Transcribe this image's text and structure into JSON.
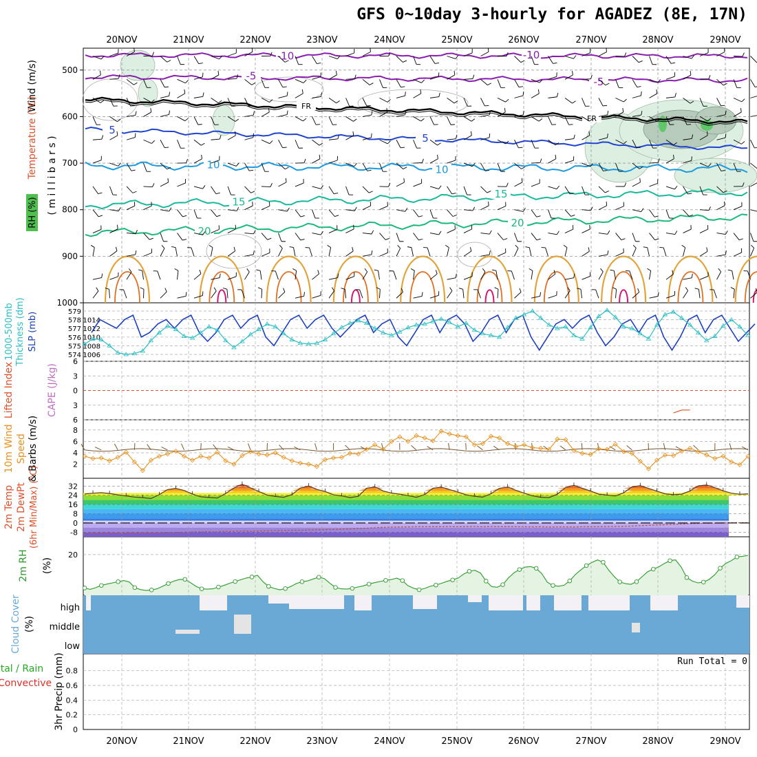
{
  "title": "GFS 0~10day 3-hourly for AGADEZ (8E, 17N)",
  "colors": {
    "wind": "#000000",
    "temp_label": "#e0502a",
    "rh_label": "#22aa22",
    "slp": "#1b3fbf",
    "thickness": "#2bbfc4",
    "lifted": "#e0502a",
    "cape": "#c070c0",
    "wind10_speed": "#e8901a",
    "wind10_barb": "#7a5530",
    "rh2m": "#2a9a2a",
    "cloud": "#6aa8d6",
    "cloud_gap": "#f3f0f6",
    "precip_total": "#22aa22",
    "precip_conv": "#e0302a"
  },
  "chart_data": [
    {
      "id": "upper-air",
      "type": "contour",
      "xlabels": [
        "20NOV",
        "21NOV",
        "22NOV",
        "23NOV",
        "24NOV",
        "25NOV",
        "26NOV",
        "27NOV",
        "28NOV",
        "29NOV"
      ],
      "yticks": [
        500,
        600,
        700,
        800,
        900,
        1000
      ],
      "ylabel_left": [
        "Wind (m/s)",
        "Temperature (°C)",
        "RH (%)"
      ],
      "ylabel_right": "(millibars)",
      "isotherms": [
        {
          "value": -10,
          "color": "#8a1db0",
          "label": "-10",
          "pressure": [
            468,
            470
          ]
        },
        {
          "value": -5,
          "color": "#8a1db0",
          "label": "-5",
          "pressure": [
            515,
            522
          ]
        },
        {
          "value": 0,
          "color": "#000000",
          "label": "FR",
          "pressure": [
            563,
            612
          ]
        },
        {
          "value": 5,
          "color": "#2042d0",
          "label": "5",
          "pressure": [
            628,
            668
          ]
        },
        {
          "value": 10,
          "color": "#1a9ae0",
          "label": "10",
          "pressure": [
            705,
            712
          ]
        },
        {
          "value": 15,
          "color": "#1ab89a",
          "label": "15",
          "pressure": [
            790,
            762
          ]
        },
        {
          "value": 20,
          "color": "#1ab87a",
          "label": "20",
          "pressure": [
            850,
            815
          ]
        }
      ],
      "contour_labels": [
        "-10",
        "-5",
        "FR",
        "5",
        "10",
        "15",
        "20",
        "10",
        "5",
        "FR",
        "5",
        "10",
        "15",
        "20",
        "10",
        "-10"
      ]
    },
    {
      "id": "slp-thickness",
      "type": "line",
      "ylabel_left": [
        "1000-500mb",
        "Thickness (dm)"
      ],
      "ylabel_right": "SLP (mb)",
      "thickness_ticks": [
        574,
        575,
        576,
        577,
        578,
        579
      ],
      "slp_ticks": [
        1006,
        1008,
        1010,
        1012,
        1014
      ],
      "series": [
        {
          "name": "SLP (mb)",
          "values": [
            1011,
            1014,
            1013,
            1012,
            1014,
            1015,
            1010,
            1011,
            1013,
            1014,
            1012,
            1014,
            1015,
            1011,
            1009,
            1011,
            1014,
            1015,
            1012,
            1014,
            1015,
            1010,
            1008,
            1011,
            1014,
            1015,
            1012,
            1014,
            1015,
            1012,
            1010,
            1012,
            1014,
            1015,
            1011,
            1013,
            1014,
            1010,
            1008,
            1011,
            1014,
            1015,
            1011,
            1014,
            1015,
            1013,
            1009,
            1011,
            1014,
            1015,
            1011,
            1014,
            1015,
            1010,
            1007,
            1010,
            1013,
            1014,
            1012,
            1014,
            1015,
            1011,
            1008,
            1010,
            1013,
            1014,
            1011,
            1014,
            1015,
            1010,
            1007,
            1010,
            1014,
            1015,
            1011,
            1014,
            1015,
            1012,
            1009,
            1011,
            1013
          ]
        },
        {
          "name": "Thickness (dm)",
          "values": [
            575.2,
            575.8,
            575.7,
            575.0,
            574.2,
            574.0,
            574.1,
            574.4,
            575.6,
            576.5,
            577.3,
            576.9,
            576.1,
            575.9,
            576.5,
            577.2,
            576.8,
            575.6,
            574.8,
            575.5,
            576.3,
            576.9,
            577.5,
            577.2,
            576.4,
            575.7,
            575.3,
            575.2,
            575.3,
            575.7,
            576.4,
            577.1,
            577.6,
            577.9,
            577.6,
            577.0,
            576.5,
            576.2,
            576.6,
            577.1,
            577.4,
            577.5,
            577.8,
            578.1,
            577.7,
            577.2,
            577.6,
            576.8,
            576.4,
            576.2,
            576.0,
            577.1,
            578.2,
            578.6,
            579.0,
            578.2,
            577.4,
            577.0,
            577.2,
            576.2,
            575.8,
            577.1,
            578.4,
            579.1,
            578.3,
            577.2,
            577.0,
            576.4,
            575.8,
            577.4,
            578.6,
            578.9,
            578.2,
            577.4,
            576.5,
            575.6,
            576.1,
            577.3,
            578.0,
            577.2,
            576.2
          ]
        }
      ]
    },
    {
      "id": "stability",
      "type": "line",
      "ylabel_left": [
        "Lifted Index",
        "CAPE (J/kg)"
      ],
      "lifted_ticks": [
        -6,
        -3,
        0,
        3,
        6
      ],
      "lifted_tick_labels": [
        "6",
        "3",
        "0",
        "3",
        "6"
      ],
      "cape_segment": {
        "x_index": [
          71,
          73
        ],
        "values": [
          4.6,
          4.0
        ]
      }
    },
    {
      "id": "wind10",
      "type": "line",
      "ylabel_left": [
        "10m Wind",
        "Speed",
        "& Barbs (m/s)"
      ],
      "yticks": [
        2,
        4,
        6,
        8
      ],
      "series": [
        {
          "name": "10m Wind Speed (m/s)",
          "values": [
            3.4,
            3.0,
            3.1,
            2.6,
            3.2,
            4.1,
            2.4,
            0.9,
            2.7,
            3.4,
            3.8,
            4.3,
            3.4,
            2.7,
            3.4,
            3.1,
            4.1,
            2.6,
            2.0,
            3.5,
            4.2,
            3.8,
            3.6,
            4.0,
            3.2,
            2.6,
            2.2,
            2.0,
            1.6,
            2.8,
            3.1,
            3.2,
            3.9,
            3.8,
            4.6,
            5.4,
            4.6,
            6.0,
            6.8,
            6.0,
            7.0,
            6.6,
            6.1,
            7.8,
            7.3,
            7.0,
            6.8,
            5.4,
            5.6,
            6.9,
            6.6,
            5.6,
            5.1,
            5.4,
            4.9,
            4.8,
            4.6,
            6.4,
            6.3,
            4.4,
            3.9,
            3.7,
            4.7,
            4.6,
            5.5,
            4.2,
            3.9,
            2.5,
            1.2,
            2.7,
            3.6,
            3.5,
            4.3,
            4.8,
            4.2,
            3.6,
            3.0,
            3.4,
            2.4,
            1.9,
            3.4
          ]
        }
      ]
    },
    {
      "id": "temp2m",
      "type": "area",
      "ylabel_left": [
        "2m Temp",
        "2m DewPt",
        "(6hr Min/Max) (°C)"
      ],
      "yticks": [
        -8,
        0,
        8,
        16,
        24,
        32
      ],
      "series": [
        {
          "name": "2m Temp (°C)",
          "values": [
            25.1,
            25.8,
            26.3,
            25.6,
            24.4,
            23.5,
            22.5,
            22.0,
            21.2,
            24.5,
            29.0,
            30.0,
            28.2,
            25.1,
            22.7,
            22.1,
            21.7,
            25.6,
            30.3,
            33.5,
            30.5,
            27.3,
            24.2,
            23.0,
            22.3,
            24.6,
            30.3,
            32.1,
            29.1,
            27.3,
            24.4,
            23.5,
            22.0,
            23.1,
            30.2,
            31.3,
            27.8,
            26.0,
            24.9,
            23.7,
            22.3,
            24.6,
            30.1,
            31.1,
            29.0,
            26.8,
            24.4,
            23.2,
            22.4,
            25.4,
            30.0,
            31.2,
            28.3,
            25.9,
            23.6,
            22.3,
            22.0,
            25.0,
            30.8,
            32.6,
            30.1,
            27.7,
            25.0,
            24.2,
            23.4,
            26.2,
            31.3,
            32.3,
            30.0,
            27.6,
            25.3,
            24.5,
            25.0,
            27.8,
            32.2,
            33.0,
            30.6,
            27.9,
            25.8,
            24.9,
            25.3
          ]
        },
        {
          "name": "2m DewPt (°C)",
          "values": [
            -9.5,
            -9.2,
            -9.0,
            -9.1,
            -8.9,
            -8.7,
            -8.6,
            -8.5,
            -8.6,
            -8.4,
            -8.2,
            -8.2,
            -8.0,
            -7.8,
            -7.7,
            -7.6,
            -7.6,
            -7.4,
            -7.3,
            -7.1,
            -7.2,
            -7.0,
            -6.8,
            -6.6,
            -6.7,
            -6.4,
            -6.3,
            -6.1,
            -6.0,
            -5.8,
            -5.6,
            -5.5,
            -5.1,
            -4.8,
            -4.6,
            -4.2,
            -3.9,
            -3.6,
            -3.5,
            -3.4,
            -3.3,
            -3.3,
            -3.2,
            -3.2,
            -3.1,
            -3.2,
            -3.2,
            -3.1,
            -3.3,
            -3.1,
            -3.2,
            -3.2,
            -3.2,
            -3.3,
            -3.4,
            -3.3,
            -3.5,
            -3.4,
            -3.4,
            -3.5,
            -3.3,
            -3.2,
            -3.3,
            -3.1,
            -3.0,
            -2.9,
            -2.7,
            -2.4,
            -2.1,
            -1.8,
            -1.5,
            -1.2,
            -0.9,
            -0.6,
            -0.4,
            -0.2,
            -0.1,
            0.0,
            0.1,
            0.1,
            0.2
          ]
        }
      ]
    },
    {
      "id": "rh2m",
      "type": "area",
      "ylabel_left": [
        "2m RH",
        "(%)"
      ],
      "yticks": [
        20
      ],
      "series": [
        {
          "name": "2m RH (%)",
          "values": [
            3.0,
            2.3,
            3.2,
            4.3,
            5.0,
            5.6,
            6.2,
            6.8,
            6.1,
            3.2,
            2.2,
            1.8,
            2.0,
            2.6,
            3.9,
            5.3,
            6.5,
            7.3,
            7.4,
            5.7,
            3.8,
            2.6,
            2.4,
            2.6,
            3.5,
            4.3,
            5.4,
            6.3,
            7.2,
            8.1,
            8.6,
            9.5,
            6.2,
            3.8,
            2.8,
            2.1,
            2.7,
            3.8,
            5.3,
            6.2,
            6.6,
            7.6,
            8.5,
            7.8,
            5.4,
            3.3,
            2.6,
            2.5,
            2.8,
            3.5,
            4.1,
            5.0,
            5.7,
            6.3,
            6.9,
            7.3,
            8.0,
            6.8,
            4.2,
            2.9,
            2.1,
            2.8,
            3.9,
            4.5,
            5.4,
            6.4,
            7.1,
            8.1,
            10.1,
            11.5,
            12.0,
            10.6,
            6.5,
            3.7,
            3.4,
            4.7,
            8.1,
            10.7,
            12.4,
            13.6,
            13.9,
            13.0,
            10.3,
            5.9,
            4.3,
            3.9,
            4.4,
            6.6,
            9.8,
            12.2,
            14.4,
            16.0,
            17.3,
            16.1,
            12.1,
            8.8,
            6.1,
            5.2,
            4.9,
            6.2,
            8.8,
            11.3,
            12.6,
            13.8,
            15.5,
            16.9,
            17.3,
            13.7,
            8.3,
            6.5,
            5.6,
            6.0,
            7.3,
            9.7,
            13.1,
            15.5,
            16.9,
            18.8,
            19.1,
            19.6
          ]
        }
      ]
    },
    {
      "id": "cloud",
      "type": "heatmap",
      "ylabel_left": [
        "Cloud Cover",
        "(%)"
      ],
      "rows": [
        "high",
        "middle",
        "low"
      ]
    },
    {
      "id": "precip",
      "type": "bar",
      "ylabel_left": [
        "Total / Rain",
        "Convective",
        "3hr Precip (mm)"
      ],
      "yticks": [
        0,
        0.2,
        0.4,
        0.6,
        0.8
      ],
      "ylim": [
        0,
        1
      ],
      "run_total": "Run Total = 0",
      "values": []
    }
  ]
}
